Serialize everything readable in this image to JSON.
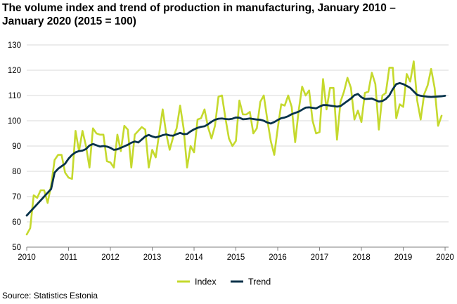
{
  "title_line1": "The volume index and trend of production in manufacturing, January 2010 –",
  "title_line2": "January 2020 (2015 = 100)",
  "source": "Source: Statistics Estonia",
  "colors": {
    "index": "#c5d92d",
    "trend": "#06324a",
    "grid": "#d9d9d9",
    "axis": "#7f7f7f"
  },
  "chart_data": {
    "type": "line",
    "title": "The volume index and trend of production in manufacturing, January 2010 – January 2020 (2015 = 100)",
    "xlabel": "",
    "ylabel": "",
    "xlim": [
      2010,
      2020.0833
    ],
    "ylim": [
      50,
      130
    ],
    "yticks": [
      50,
      60,
      70,
      80,
      90,
      100,
      110,
      120,
      130
    ],
    "xticks": [
      2010,
      2011,
      2012,
      2013,
      2014,
      2015,
      2016,
      2017,
      2018,
      2019,
      2020
    ],
    "grid": true,
    "legend_position": "bottom",
    "series": [
      {
        "name": "Index",
        "x_start": 2010,
        "step": "month",
        "values": [
          55,
          57.5,
          70.5,
          69.5,
          72.5,
          72.5,
          67.5,
          74.5,
          84.5,
          86.5,
          86.5,
          79.5,
          77.5,
          77,
          96,
          88,
          96,
          90,
          81.5,
          97,
          95,
          94.5,
          94.5,
          84,
          83.5,
          81.5,
          94.5,
          88,
          98,
          96.5,
          81.5,
          94.5,
          96,
          97.5,
          96.5,
          81.5,
          88.5,
          85.5,
          95,
          104.5,
          95,
          88.5,
          93.5,
          97,
          106,
          97,
          81.5,
          90,
          87.5,
          100.5,
          101,
          104.5,
          97.5,
          93,
          98,
          109.5,
          110,
          101,
          93,
          90,
          92,
          108,
          102.5,
          102.5,
          103.5,
          95,
          97,
          107.5,
          110,
          100.5,
          92,
          86.5,
          97,
          106.5,
          106,
          110,
          105.5,
          91.5,
          104,
          113.5,
          110,
          112,
          100,
          95,
          95.5,
          116.5,
          104.5,
          113,
          113,
          92.5,
          107.5,
          111.5,
          117,
          113,
          100.5,
          104,
          99.5,
          111,
          111.5,
          119,
          114.5,
          96.5,
          110,
          111,
          121,
          121,
          101,
          106.5,
          105.5,
          118.5,
          115.5,
          123.5,
          108,
          100.5,
          110.5,
          114,
          120.5,
          113,
          98,
          102
        ]
      },
      {
        "name": "Trend",
        "x_start": 2010,
        "step": "month",
        "values": [
          62.5,
          64,
          65.5,
          67,
          68.5,
          70,
          71.5,
          73,
          79.5,
          81,
          82,
          83,
          85,
          86.5,
          87.5,
          88,
          88.2,
          88.8,
          90.2,
          90.8,
          90.3,
          89.8,
          90,
          89.8,
          89.3,
          88.5,
          88.7,
          89.3,
          89.9,
          90.5,
          91.3,
          91.8,
          91.4,
          92.6,
          93.8,
          94.4,
          93.8,
          93.4,
          93.8,
          94.3,
          94.6,
          94.2,
          94.1,
          94.7,
          95.2,
          94.7,
          94.8,
          95.8,
          96.6,
          97.2,
          97.6,
          97.8,
          98.6,
          99.6,
          100.4,
          100.8,
          100.9,
          100.7,
          100.6,
          100.8,
          101.3,
          101.2,
          100.6,
          100.7,
          100.9,
          100.7,
          100.5,
          100.4,
          100,
          99.3,
          98.9,
          99.5,
          100.3,
          101,
          101.3,
          101.8,
          102.6,
          103.1,
          103.6,
          104.4,
          105.2,
          105.3,
          105.1,
          104.9,
          105.6,
          106.2,
          106.2,
          106,
          105.8,
          105.6,
          105.8,
          106.8,
          107.8,
          108.8,
          110.1,
          110.6,
          109.3,
          108.6,
          108.7,
          108.8,
          108.2,
          107.6,
          107.8,
          108.6,
          110,
          112.5,
          114.5,
          114.9,
          114.5,
          113.8,
          113,
          111.6,
          110.2,
          109.9,
          109.7,
          109.5,
          109.4,
          109.5,
          109.6,
          109.7,
          109.9
        ]
      }
    ]
  }
}
